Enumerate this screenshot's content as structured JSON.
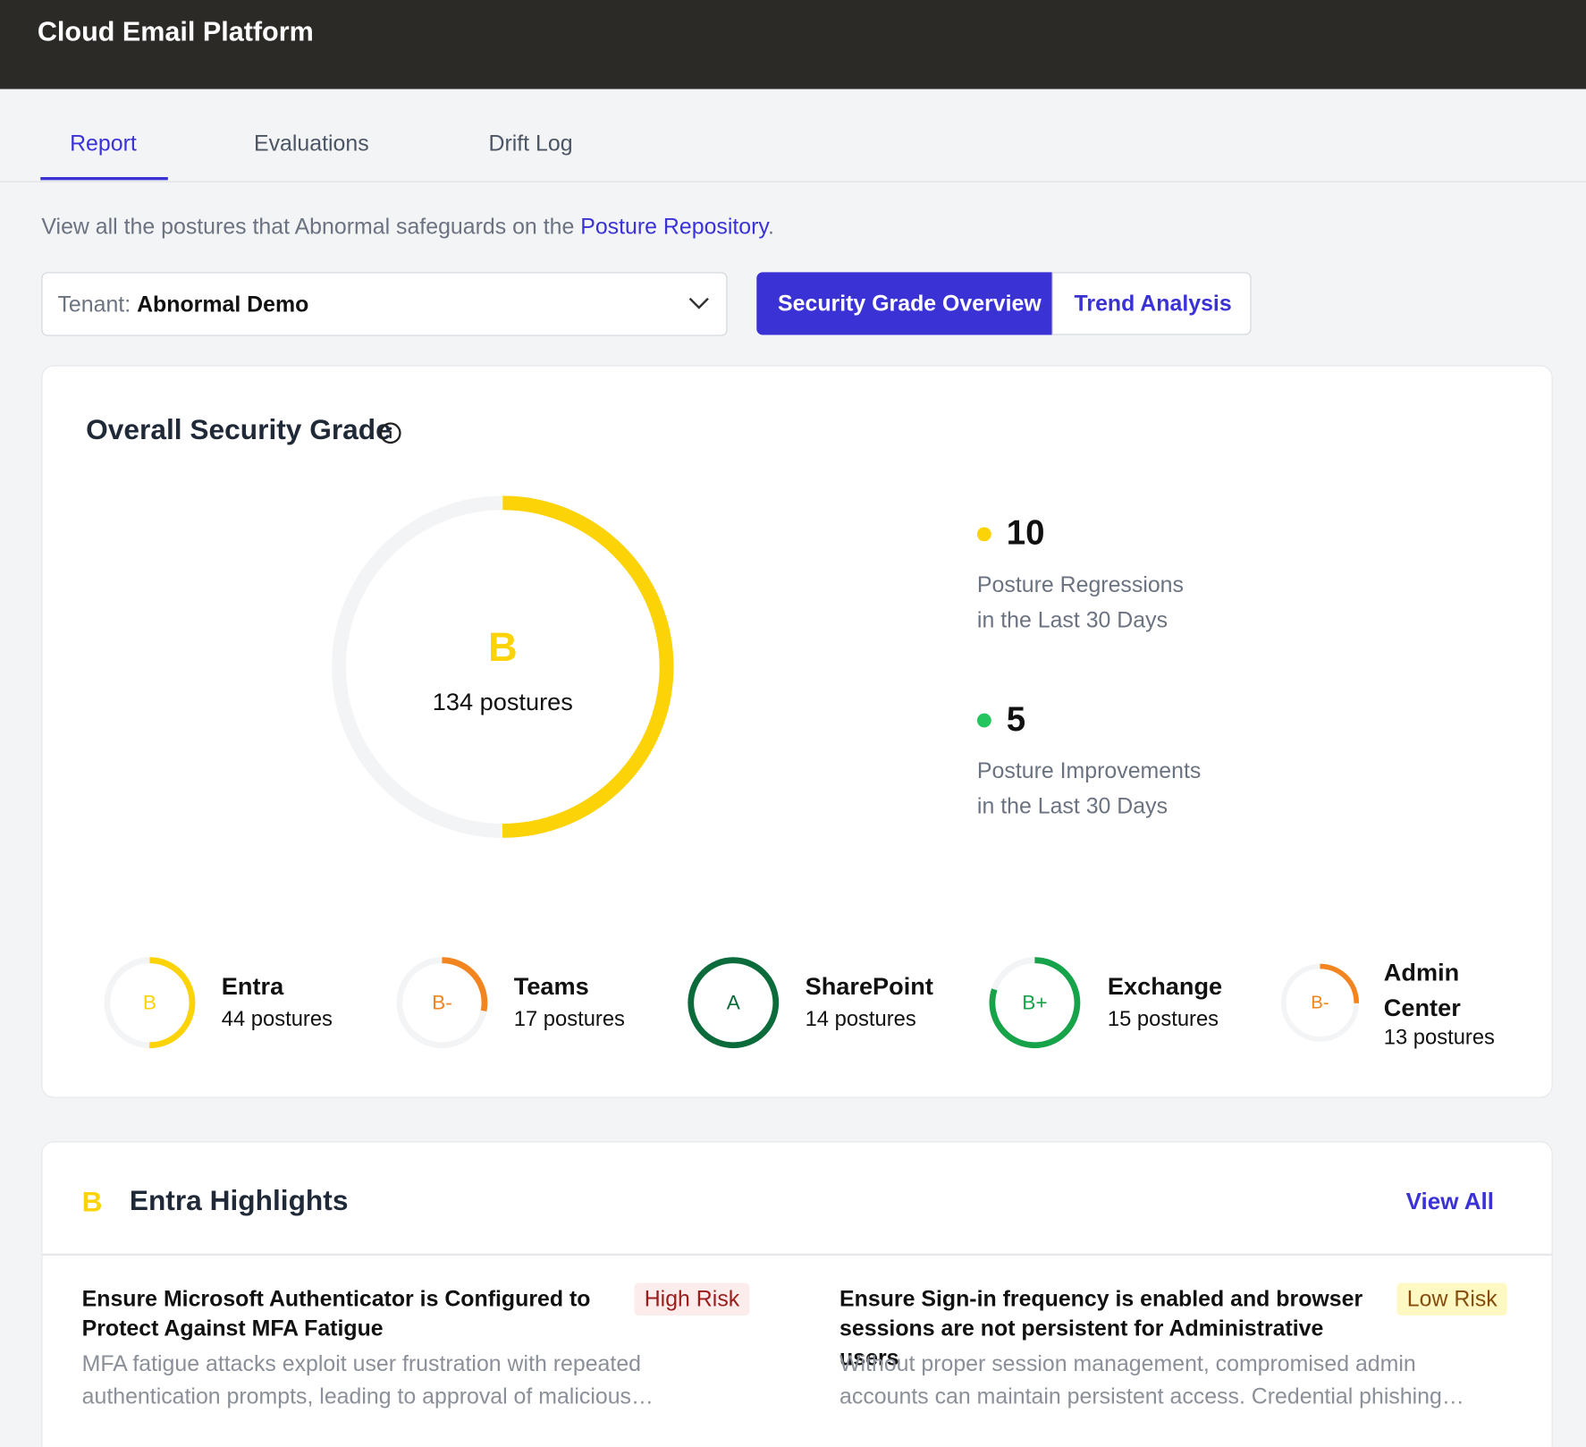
{
  "header": {
    "title": "Cloud Email Platform"
  },
  "tabs": [
    "Report",
    "Evaluations",
    "Drift Log"
  ],
  "intro": {
    "text": "View all the postures that Abnormal safeguards on the ",
    "link": "Posture Repository",
    "end": "."
  },
  "tenant": {
    "label": "Tenant:",
    "value": "Abnormal Demo"
  },
  "view_toggle": [
    "Security Grade Overview",
    "Trend Analysis"
  ],
  "overall": {
    "title": "Overall Security Grade",
    "grade": "B",
    "postures": "134 postures",
    "stats": [
      {
        "value": 10,
        "line1": "Posture Regressions",
        "line2": "in the Last 30 Days"
      },
      {
        "value": 5,
        "line1": "Posture Improvements",
        "line2": "in the Last 30 Days"
      }
    ],
    "services": [
      {
        "grade": "B",
        "name": "Entra",
        "postures": "44 postures"
      },
      {
        "grade": "B-",
        "name": "Teams",
        "postures": "17 postures"
      },
      {
        "grade": "A",
        "name": "SharePoint",
        "postures": "14 postures"
      },
      {
        "grade": "B+",
        "name": "Exchange",
        "postures": "15 postures"
      },
      {
        "grade": "B-",
        "name": "Admin Center",
        "postures": "13 postures"
      }
    ]
  },
  "highlights": {
    "grade": "B",
    "title": "Entra Highlights",
    "view_all": "View All",
    "items": [
      {
        "title": "Ensure Microsoft Authenticator is Configured to Protect Against MFA Fatigue",
        "risk": "High Risk",
        "description": "MFA fatigue attacks exploit user frustration with repeated authentication prompts, leading to approval of malicious…"
      },
      {
        "title": "Ensure Sign-in frequency is enabled and browser sessions are not persistent for Administrative users",
        "risk": "Low Risk",
        "description": "Without proper session management, compromised admin accounts can maintain persistent access. Credential phishing…"
      }
    ]
  }
}
